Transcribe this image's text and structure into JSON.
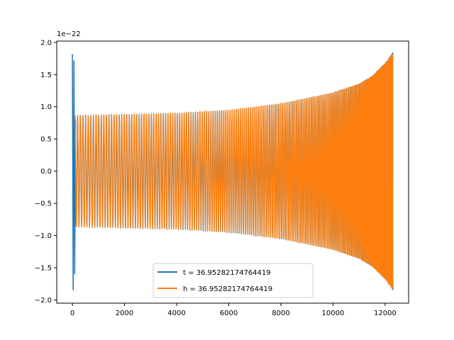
{
  "chart_data": {
    "type": "line",
    "title": "",
    "xlabel": "",
    "ylabel": "",
    "y_offset_text": "1e−22",
    "xlim": [
      -600,
      12900
    ],
    "ylim": [
      -2.05,
      2.02
    ],
    "x_ticks": [
      0,
      2000,
      4000,
      6000,
      8000,
      10000,
      12000
    ],
    "x_tick_labels": [
      "0",
      "2000",
      "4000",
      "6000",
      "8000",
      "10000",
      "12000"
    ],
    "y_ticks": [
      -2.0,
      -1.5,
      -1.0,
      -0.5,
      0.0,
      0.5,
      1.0,
      1.5,
      2.0
    ],
    "y_tick_labels": [
      "−2.0",
      "−1.5",
      "−1.0",
      "−0.5",
      "0.0",
      "0.5",
      "1.0",
      "1.5",
      "2.0"
    ],
    "grid": false,
    "legend_position": "lower-center",
    "series": [
      {
        "name": "t = 36.95282174764419",
        "color": "#1f77b4",
        "spike_x": [
          0,
          30,
          60,
          90,
          120
        ],
        "spike_y": [
          1.82,
          -1.85,
          1.72,
          -1.6,
          0.8
        ],
        "envelope_x": [
          0,
          2000,
          4000,
          6000,
          8000,
          10000,
          11000,
          11500,
          12000,
          12300
        ],
        "envelope_amp": [
          0.86,
          0.88,
          0.9,
          0.95,
          1.05,
          1.22,
          1.36,
          1.48,
          1.68,
          1.85
        ],
        "x_end": 12300
      },
      {
        "name": "h = 36.95282174764419",
        "color": "#ff7f0e",
        "envelope_x": [
          0,
          2000,
          4000,
          6000,
          8000,
          10000,
          11000,
          11500,
          12000,
          12300
        ],
        "envelope_amp": [
          0.86,
          0.88,
          0.9,
          0.95,
          1.05,
          1.22,
          1.36,
          1.48,
          1.68,
          1.85
        ],
        "x_start": 0,
        "x_end": 12300
      }
    ]
  }
}
